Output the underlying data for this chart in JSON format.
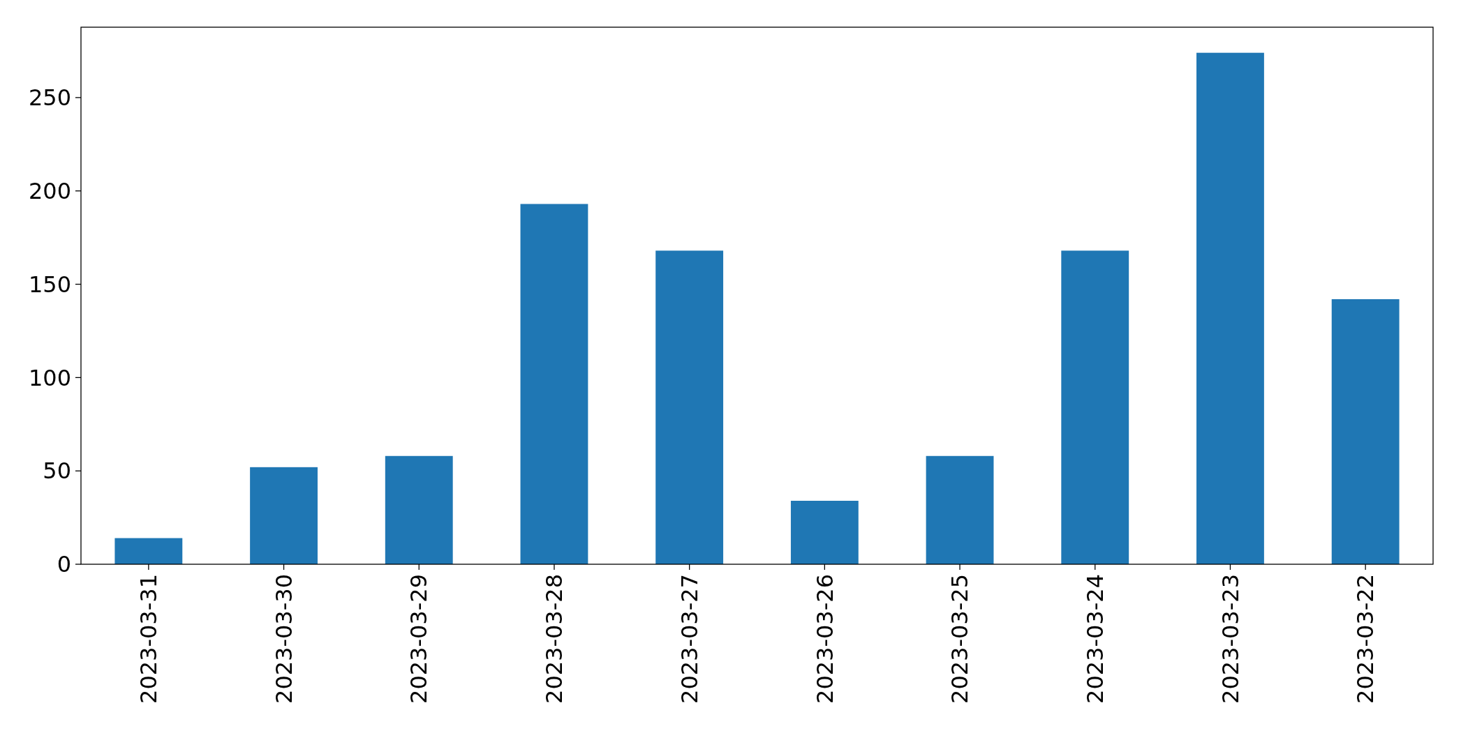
{
  "chart_data": {
    "type": "bar",
    "categories": [
      "2023-03-31",
      "2023-03-30",
      "2023-03-29",
      "2023-03-28",
      "2023-03-27",
      "2023-03-26",
      "2023-03-25",
      "2023-03-24",
      "2023-03-23",
      "2023-03-22"
    ],
    "values": [
      14,
      52,
      58,
      193,
      168,
      34,
      58,
      168,
      274,
      142
    ],
    "color": "#1f77b4",
    "ylim": [
      0,
      287.7
    ],
    "yticks": [
      0,
      50,
      100,
      150,
      200,
      250
    ]
  }
}
